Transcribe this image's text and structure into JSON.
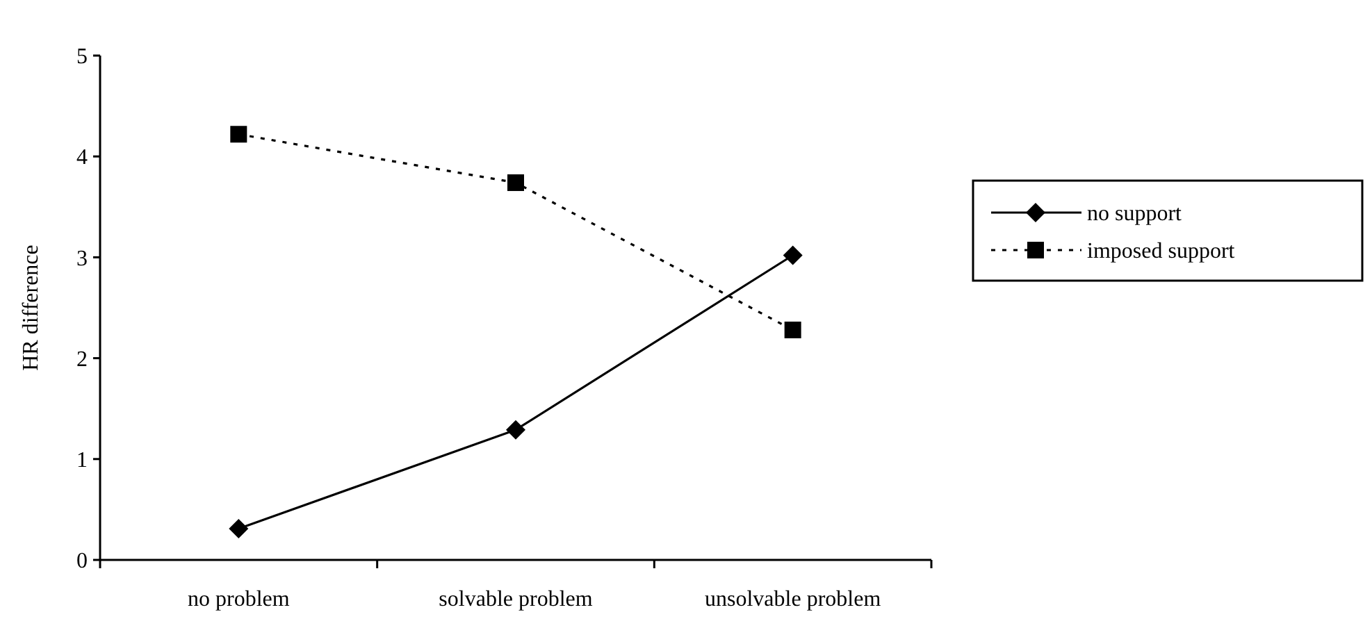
{
  "chart_data": {
    "type": "line",
    "ylabel": "HR difference",
    "categories": [
      "no problem",
      "solvable problem",
      "unsolvable problem"
    ],
    "ylim": [
      0,
      5
    ],
    "yticks": [
      0,
      1,
      2,
      3,
      4,
      5
    ],
    "grid": false,
    "legend": "right",
    "series": [
      {
        "name": "no support",
        "color": "#000000",
        "values": [
          0.31,
          1.29,
          3.02
        ],
        "marker": "diamond",
        "line_style": "solid"
      },
      {
        "name": "imposed support",
        "color": "#000000",
        "values": [
          4.22,
          3.74,
          2.28
        ],
        "marker": "square",
        "line_style": "dotted"
      }
    ]
  }
}
